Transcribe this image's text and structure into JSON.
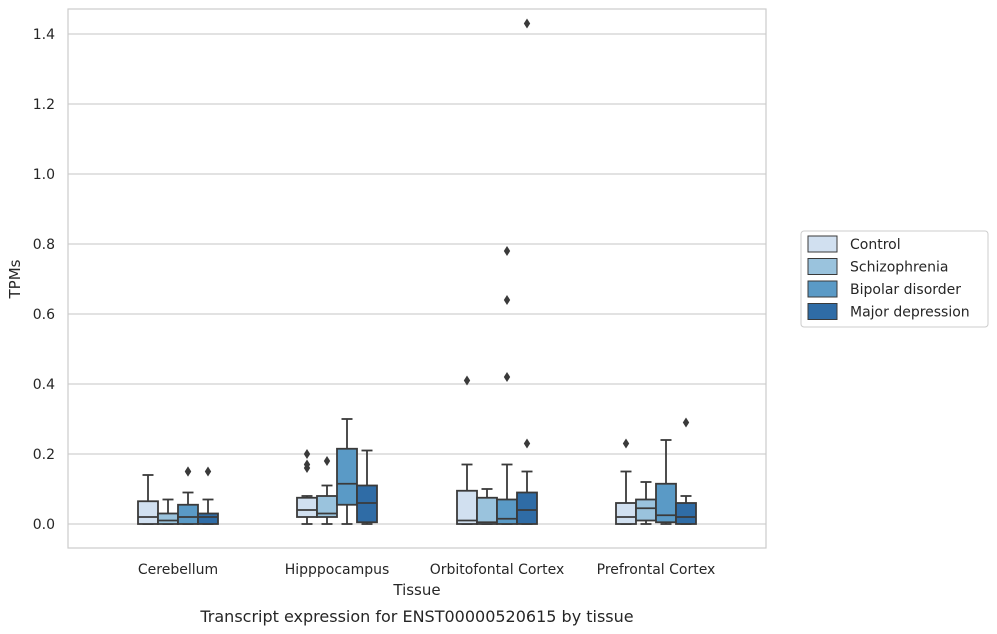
{
  "chart_data": {
    "type": "box",
    "title": "",
    "caption": "Transcript expression for ENST00000520615 by tissue",
    "xlabel": "Tissue",
    "ylabel": "TPMs",
    "ylim": [
      -0.07,
      1.5
    ],
    "yticks": [
      0.0,
      0.2,
      0.4,
      0.6,
      0.8,
      1.0,
      1.2,
      1.4
    ],
    "ytick_labels": [
      "0.0",
      "0.2",
      "0.4",
      "0.6",
      "0.8",
      "1.0",
      "1.2",
      "1.4"
    ],
    "grid": "horizontal",
    "legend_position": "right",
    "categories": [
      "Cerebellum",
      "Hipppocampus",
      "Orbitofontal Cortex",
      "Prefrontal Cortex"
    ],
    "series": [
      {
        "name": "Control",
        "color": "#d1e0f0",
        "boxes": [
          {
            "q1": 0.0,
            "median": 0.02,
            "q3": 0.065,
            "whisker_low": 0.0,
            "whisker_high": 0.14,
            "outliers": []
          },
          {
            "q1": 0.02,
            "median": 0.04,
            "q3": 0.075,
            "whisker_low": 0.0,
            "whisker_high": 0.08,
            "outliers": [
              0.2,
              0.17,
              0.16
            ]
          },
          {
            "q1": 0.0,
            "median": 0.01,
            "q3": 0.095,
            "whisker_low": 0.0,
            "whisker_high": 0.17,
            "outliers": [
              0.41
            ]
          },
          {
            "q1": 0.0,
            "median": 0.02,
            "q3": 0.06,
            "whisker_low": 0.0,
            "whisker_high": 0.15,
            "outliers": [
              0.23
            ]
          }
        ]
      },
      {
        "name": "Schizophrenia",
        "color": "#9ac3dd",
        "boxes": [
          {
            "q1": 0.0,
            "median": 0.01,
            "q3": 0.03,
            "whisker_low": 0.0,
            "whisker_high": 0.07,
            "outliers": []
          },
          {
            "q1": 0.02,
            "median": 0.03,
            "q3": 0.08,
            "whisker_low": 0.0,
            "whisker_high": 0.11,
            "outliers": [
              0.18
            ]
          },
          {
            "q1": 0.0,
            "median": 0.005,
            "q3": 0.075,
            "whisker_low": 0.0,
            "whisker_high": 0.1,
            "outliers": []
          },
          {
            "q1": 0.01,
            "median": 0.045,
            "q3": 0.07,
            "whisker_low": 0.0,
            "whisker_high": 0.12,
            "outliers": []
          }
        ]
      },
      {
        "name": "Bipolar disorder",
        "color": "#5a9ac6",
        "boxes": [
          {
            "q1": 0.0,
            "median": 0.02,
            "q3": 0.055,
            "whisker_low": 0.0,
            "whisker_high": 0.09,
            "outliers": [
              0.15,
              0.15
            ]
          },
          {
            "q1": 0.055,
            "median": 0.115,
            "q3": 0.215,
            "whisker_low": 0.0,
            "whisker_high": 0.3,
            "outliers": []
          },
          {
            "q1": 0.0,
            "median": 0.015,
            "q3": 0.07,
            "whisker_low": 0.0,
            "whisker_high": 0.17,
            "outliers": [
              0.78,
              0.64,
              0.42
            ]
          },
          {
            "q1": 0.005,
            "median": 0.025,
            "q3": 0.115,
            "whisker_low": 0.0,
            "whisker_high": 0.24,
            "outliers": []
          }
        ]
      },
      {
        "name": "Major depression",
        "color": "#2f6ca6",
        "boxes": [
          {
            "q1": 0.0,
            "median": 0.02,
            "q3": 0.03,
            "whisker_low": 0.0,
            "whisker_high": 0.07,
            "outliers": [
              0.15
            ]
          },
          {
            "q1": 0.005,
            "median": 0.06,
            "q3": 0.11,
            "whisker_low": 0.0,
            "whisker_high": 0.21,
            "outliers": []
          },
          {
            "q1": 0.0,
            "median": 0.04,
            "q3": 0.09,
            "whisker_low": 0.0,
            "whisker_high": 0.15,
            "outliers": [
              1.43,
              0.23
            ]
          },
          {
            "q1": 0.0,
            "median": 0.02,
            "q3": 0.06,
            "whisker_low": 0.0,
            "whisker_high": 0.08,
            "outliers": [
              0.29
            ]
          }
        ]
      }
    ]
  }
}
